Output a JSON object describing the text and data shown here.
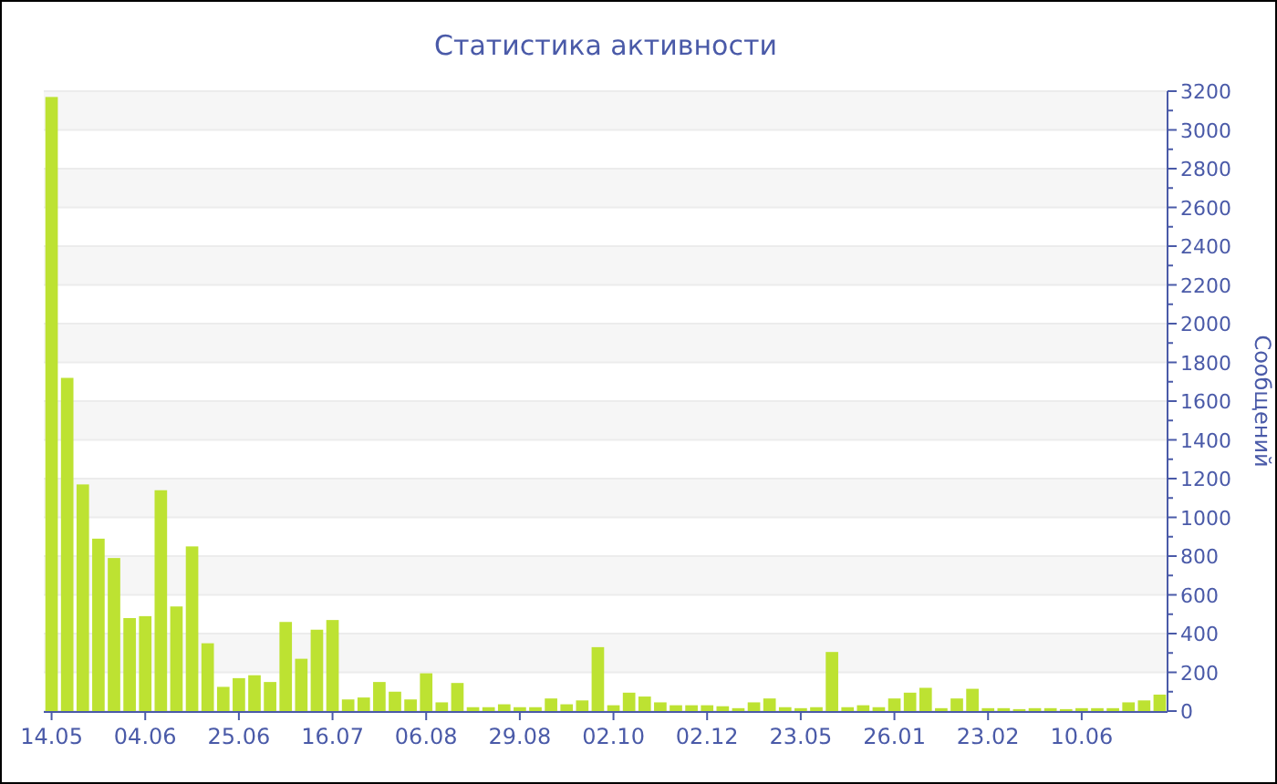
{
  "chart_data": {
    "type": "bar",
    "title": "Статистика активности",
    "ylabel": "Сообщений",
    "categories": [
      "14.05",
      null,
      null,
      null,
      null,
      null,
      "04.06",
      null,
      null,
      null,
      null,
      null,
      "25.06",
      null,
      null,
      null,
      null,
      null,
      "16.07",
      null,
      null,
      null,
      null,
      null,
      "06.08",
      null,
      null,
      null,
      null,
      null,
      "29.08",
      null,
      null,
      null,
      null,
      null,
      "02.10",
      null,
      null,
      null,
      null,
      null,
      "02.12",
      null,
      null,
      null,
      null,
      null,
      "23.05",
      null,
      null,
      null,
      null,
      null,
      "26.01",
      null,
      null,
      null,
      null,
      null,
      "23.02",
      null,
      null,
      null,
      null,
      null,
      "10.06",
      null,
      null,
      null,
      null,
      null
    ],
    "values": [
      3170,
      1720,
      1170,
      890,
      790,
      480,
      490,
      1140,
      540,
      850,
      350,
      125,
      170,
      185,
      150,
      460,
      270,
      420,
      470,
      60,
      70,
      150,
      100,
      60,
      195,
      45,
      145,
      20,
      20,
      35,
      20,
      20,
      65,
      35,
      55,
      330,
      30,
      95,
      75,
      45,
      30,
      30,
      30,
      25,
      15,
      45,
      65,
      20,
      15,
      20,
      305,
      20,
      30,
      20,
      65,
      95,
      120,
      15,
      65,
      115,
      15,
      15,
      10,
      15,
      15,
      10,
      15,
      15,
      15,
      45,
      55,
      85
    ],
    "color": "#bde232",
    "ylim": [
      0,
      3200
    ],
    "yticks": [
      0,
      200,
      400,
      600,
      800,
      1000,
      1200,
      1400,
      1600,
      1800,
      2000,
      2200,
      2400,
      2600,
      2800,
      3000,
      3200
    ],
    "grid": "y"
  }
}
